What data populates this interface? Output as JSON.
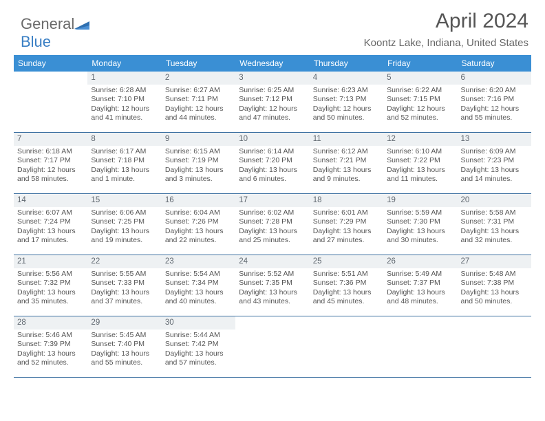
{
  "brand": {
    "part1": "General",
    "part2": "Blue"
  },
  "title": "April 2024",
  "location": "Koontz Lake, Indiana, United States",
  "colors": {
    "header_bg": "#3a8fd4",
    "rule": "#3a6fa0",
    "daynum_bg": "#eef1f3",
    "text": "#555555",
    "logo_blue": "#3a7fc4"
  },
  "days_of_week": [
    "Sunday",
    "Monday",
    "Tuesday",
    "Wednesday",
    "Thursday",
    "Friday",
    "Saturday"
  ],
  "weeks": [
    [
      null,
      {
        "n": "1",
        "sr": "6:28 AM",
        "ss": "7:10 PM",
        "dl": "12 hours and 41 minutes."
      },
      {
        "n": "2",
        "sr": "6:27 AM",
        "ss": "7:11 PM",
        "dl": "12 hours and 44 minutes."
      },
      {
        "n": "3",
        "sr": "6:25 AM",
        "ss": "7:12 PM",
        "dl": "12 hours and 47 minutes."
      },
      {
        "n": "4",
        "sr": "6:23 AM",
        "ss": "7:13 PM",
        "dl": "12 hours and 50 minutes."
      },
      {
        "n": "5",
        "sr": "6:22 AM",
        "ss": "7:15 PM",
        "dl": "12 hours and 52 minutes."
      },
      {
        "n": "6",
        "sr": "6:20 AM",
        "ss": "7:16 PM",
        "dl": "12 hours and 55 minutes."
      }
    ],
    [
      {
        "n": "7",
        "sr": "6:18 AM",
        "ss": "7:17 PM",
        "dl": "12 hours and 58 minutes."
      },
      {
        "n": "8",
        "sr": "6:17 AM",
        "ss": "7:18 PM",
        "dl": "13 hours and 1 minute."
      },
      {
        "n": "9",
        "sr": "6:15 AM",
        "ss": "7:19 PM",
        "dl": "13 hours and 3 minutes."
      },
      {
        "n": "10",
        "sr": "6:14 AM",
        "ss": "7:20 PM",
        "dl": "13 hours and 6 minutes."
      },
      {
        "n": "11",
        "sr": "6:12 AM",
        "ss": "7:21 PM",
        "dl": "13 hours and 9 minutes."
      },
      {
        "n": "12",
        "sr": "6:10 AM",
        "ss": "7:22 PM",
        "dl": "13 hours and 11 minutes."
      },
      {
        "n": "13",
        "sr": "6:09 AM",
        "ss": "7:23 PM",
        "dl": "13 hours and 14 minutes."
      }
    ],
    [
      {
        "n": "14",
        "sr": "6:07 AM",
        "ss": "7:24 PM",
        "dl": "13 hours and 17 minutes."
      },
      {
        "n": "15",
        "sr": "6:06 AM",
        "ss": "7:25 PM",
        "dl": "13 hours and 19 minutes."
      },
      {
        "n": "16",
        "sr": "6:04 AM",
        "ss": "7:26 PM",
        "dl": "13 hours and 22 minutes."
      },
      {
        "n": "17",
        "sr": "6:02 AM",
        "ss": "7:28 PM",
        "dl": "13 hours and 25 minutes."
      },
      {
        "n": "18",
        "sr": "6:01 AM",
        "ss": "7:29 PM",
        "dl": "13 hours and 27 minutes."
      },
      {
        "n": "19",
        "sr": "5:59 AM",
        "ss": "7:30 PM",
        "dl": "13 hours and 30 minutes."
      },
      {
        "n": "20",
        "sr": "5:58 AM",
        "ss": "7:31 PM",
        "dl": "13 hours and 32 minutes."
      }
    ],
    [
      {
        "n": "21",
        "sr": "5:56 AM",
        "ss": "7:32 PM",
        "dl": "13 hours and 35 minutes."
      },
      {
        "n": "22",
        "sr": "5:55 AM",
        "ss": "7:33 PM",
        "dl": "13 hours and 37 minutes."
      },
      {
        "n": "23",
        "sr": "5:54 AM",
        "ss": "7:34 PM",
        "dl": "13 hours and 40 minutes."
      },
      {
        "n": "24",
        "sr": "5:52 AM",
        "ss": "7:35 PM",
        "dl": "13 hours and 43 minutes."
      },
      {
        "n": "25",
        "sr": "5:51 AM",
        "ss": "7:36 PM",
        "dl": "13 hours and 45 minutes."
      },
      {
        "n": "26",
        "sr": "5:49 AM",
        "ss": "7:37 PM",
        "dl": "13 hours and 48 minutes."
      },
      {
        "n": "27",
        "sr": "5:48 AM",
        "ss": "7:38 PM",
        "dl": "13 hours and 50 minutes."
      }
    ],
    [
      {
        "n": "28",
        "sr": "5:46 AM",
        "ss": "7:39 PM",
        "dl": "13 hours and 52 minutes."
      },
      {
        "n": "29",
        "sr": "5:45 AM",
        "ss": "7:40 PM",
        "dl": "13 hours and 55 minutes."
      },
      {
        "n": "30",
        "sr": "5:44 AM",
        "ss": "7:42 PM",
        "dl": "13 hours and 57 minutes."
      },
      null,
      null,
      null,
      null
    ]
  ],
  "labels": {
    "sunrise": "Sunrise:",
    "sunset": "Sunset:",
    "daylight": "Daylight:"
  }
}
